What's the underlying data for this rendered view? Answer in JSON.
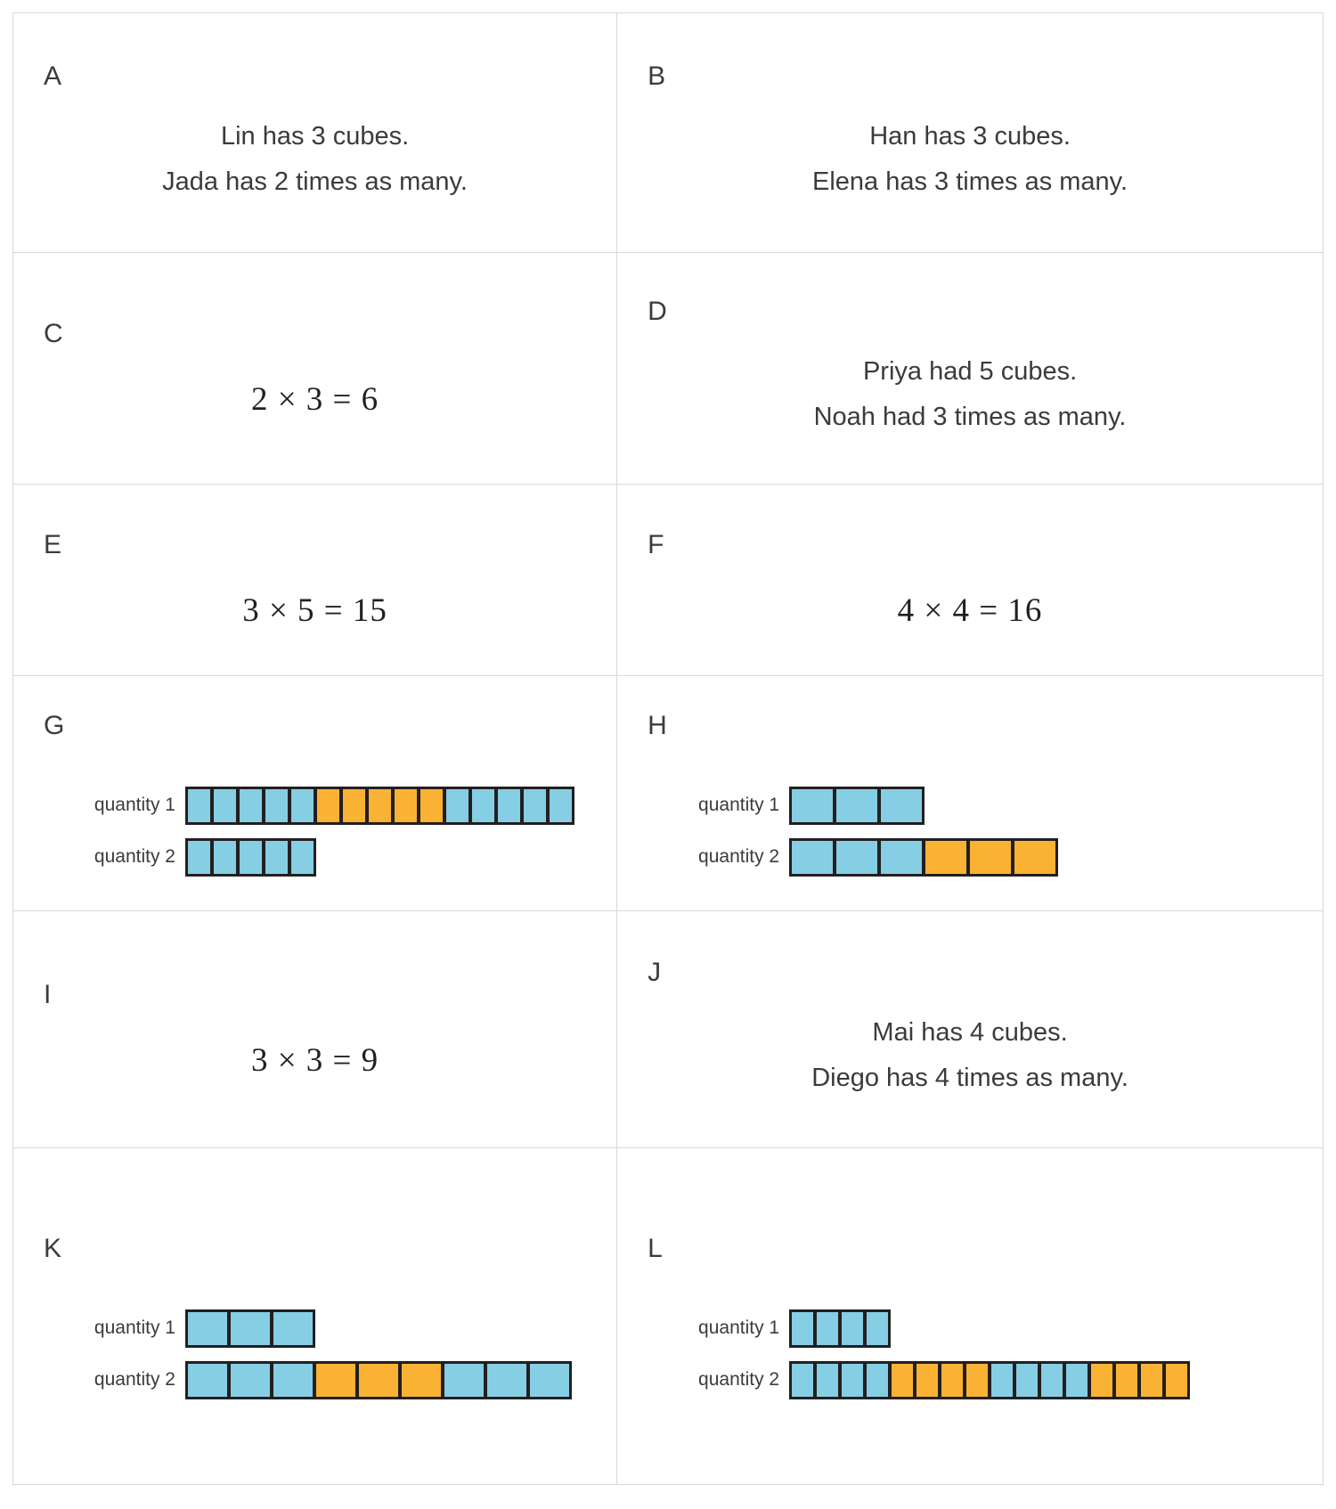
{
  "colors": {
    "blue": "#85CEE4",
    "orange": "#F9B234",
    "cube_border": "#231F20",
    "grid_line": "#D9D9D9",
    "text": "#3B3B3B"
  },
  "cards": [
    {
      "id": "A",
      "type": "text",
      "lines": [
        "Lin has 3 cubes.",
        "Jada has 2 times as many."
      ]
    },
    {
      "id": "B",
      "type": "text",
      "lines": [
        "Han has 3 cubes.",
        "Elena has 3 times as many."
      ]
    },
    {
      "id": "C",
      "type": "equation",
      "equation": "2 × 3 = 6"
    },
    {
      "id": "D",
      "type": "text",
      "lines": [
        "Priya had 5 cubes.",
        "Noah had 3 times as many."
      ]
    },
    {
      "id": "E",
      "type": "equation",
      "equation": "3 × 5 = 15"
    },
    {
      "id": "F",
      "type": "equation",
      "equation": "4 × 4 = 16"
    },
    {
      "id": "G",
      "type": "diagram",
      "cube_width": 29,
      "rows": [
        {
          "label": "quantity 1",
          "groups": [
            {
              "color": "blue",
              "count": 5
            },
            {
              "color": "orange",
              "count": 5
            },
            {
              "color": "blue",
              "count": 5
            }
          ]
        },
        {
          "label": "quantity 2",
          "groups": [
            {
              "color": "blue",
              "count": 5
            }
          ]
        }
      ]
    },
    {
      "id": "H",
      "type": "diagram",
      "cube_width": 50,
      "rows": [
        {
          "label": "quantity 1",
          "groups": [
            {
              "color": "blue",
              "count": 3
            }
          ]
        },
        {
          "label": "quantity 2",
          "groups": [
            {
              "color": "blue",
              "count": 3
            },
            {
              "color": "orange",
              "count": 3
            }
          ]
        }
      ]
    },
    {
      "id": "I",
      "type": "equation",
      "equation": "3 × 3 = 9"
    },
    {
      "id": "J",
      "type": "text",
      "lines": [
        "Mai has 4 cubes.",
        "Diego has 4 times as many."
      ]
    },
    {
      "id": "K",
      "type": "diagram",
      "cube_width": 48,
      "rows": [
        {
          "label": "quantity 1",
          "groups": [
            {
              "color": "blue",
              "count": 3
            }
          ]
        },
        {
          "label": "quantity 2",
          "groups": [
            {
              "color": "blue",
              "count": 3
            },
            {
              "color": "orange",
              "count": 3
            },
            {
              "color": "blue",
              "count": 3
            }
          ]
        }
      ]
    },
    {
      "id": "L",
      "type": "diagram",
      "cube_width": 28,
      "rows": [
        {
          "label": "quantity 1",
          "groups": [
            {
              "color": "blue",
              "count": 4
            }
          ]
        },
        {
          "label": "quantity 2",
          "groups": [
            {
              "color": "blue",
              "count": 4
            },
            {
              "color": "orange",
              "count": 4
            },
            {
              "color": "blue",
              "count": 4
            },
            {
              "color": "orange",
              "count": 4
            }
          ]
        }
      ]
    }
  ]
}
